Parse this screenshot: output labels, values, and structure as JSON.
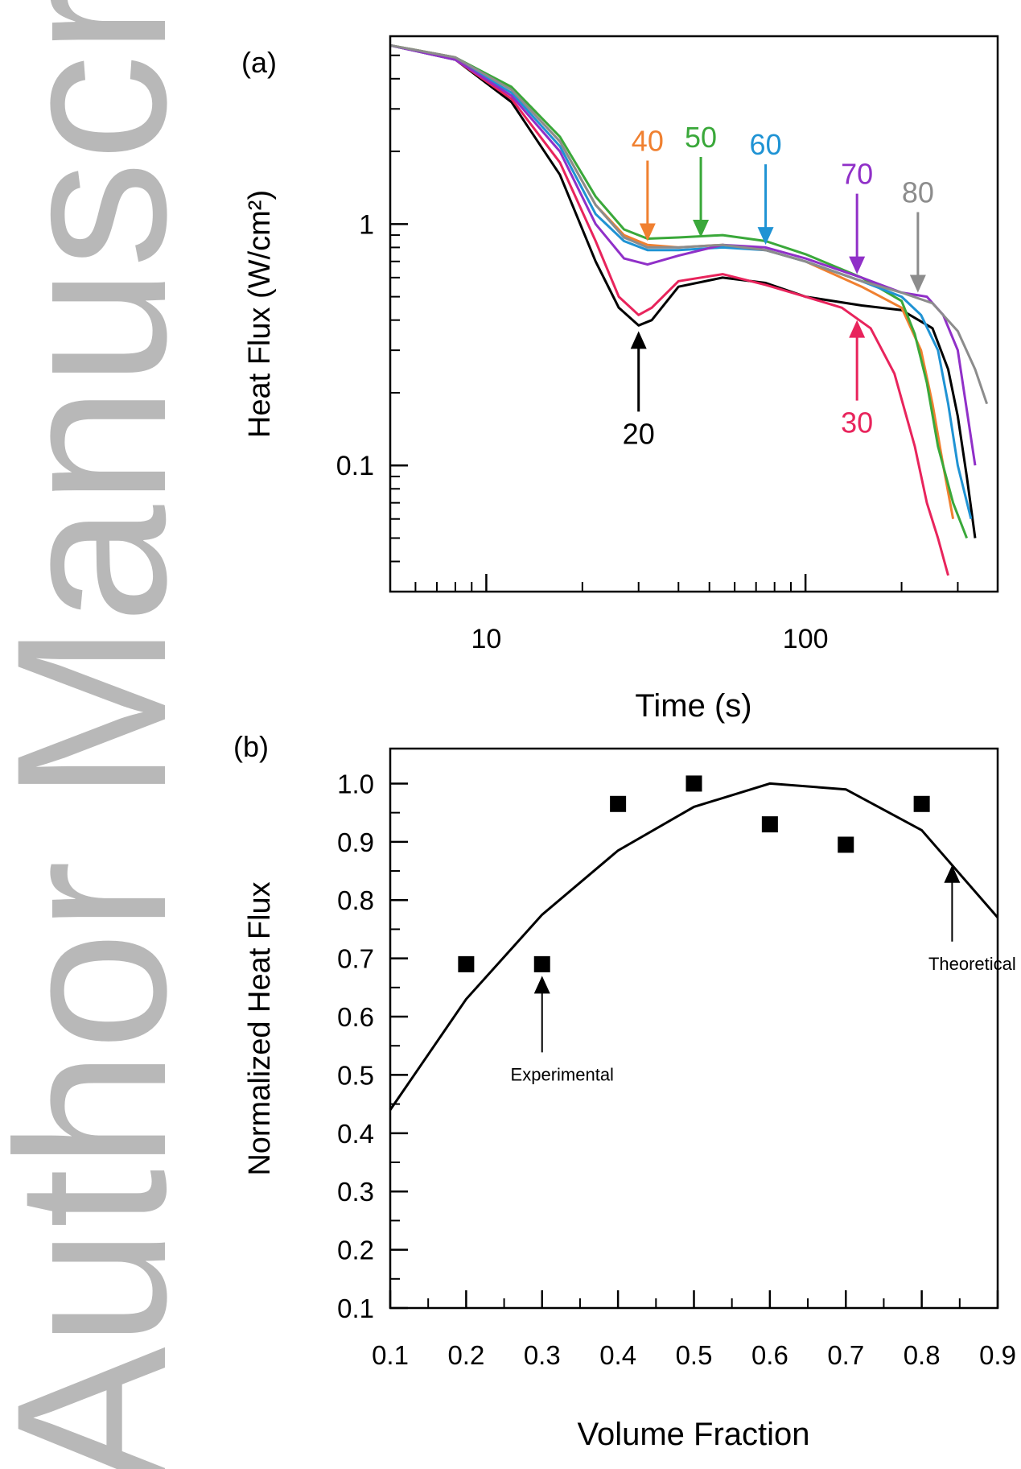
{
  "watermark": {
    "text": "Author Manuscript",
    "color": "#b8b8b8"
  },
  "chart_data": [
    {
      "panel_label": "(a)",
      "type": "line",
      "xlabel": "Time (s)",
      "ylabel": "Heat Flux (W/cm²)",
      "xscale": "log",
      "yscale": "log",
      "xlim": [
        5,
        400
      ],
      "ylim": [
        0.03,
        6
      ],
      "x_ticks": [
        10,
        100
      ],
      "x_tick_labels": [
        "10",
        "100"
      ],
      "y_ticks": [
        0.1,
        1
      ],
      "y_tick_labels": [
        "0.1",
        "1"
      ],
      "grid": false,
      "series": [
        {
          "name": "20",
          "color": "#000000",
          "x": [
            5,
            8,
            12,
            17,
            22,
            26,
            30,
            33,
            40,
            55,
            75,
            100,
            150,
            200,
            250,
            280,
            300,
            320,
            340
          ],
          "y": [
            5.5,
            4.8,
            3.2,
            1.6,
            0.7,
            0.45,
            0.38,
            0.4,
            0.55,
            0.6,
            0.57,
            0.5,
            0.46,
            0.44,
            0.37,
            0.25,
            0.16,
            0.09,
            0.05
          ]
        },
        {
          "name": "30",
          "color": "#e8245c",
          "x": [
            5,
            8,
            12,
            17,
            22,
            26,
            30,
            33,
            40,
            55,
            75,
            100,
            130,
            160,
            190,
            220,
            240,
            260,
            280
          ],
          "y": [
            5.5,
            4.8,
            3.3,
            1.8,
            0.85,
            0.5,
            0.42,
            0.45,
            0.58,
            0.62,
            0.56,
            0.5,
            0.45,
            0.37,
            0.24,
            0.12,
            0.07,
            0.05,
            0.035
          ]
        },
        {
          "name": "40",
          "color": "#f08030",
          "x": [
            5,
            8,
            12,
            17,
            22,
            27,
            32,
            40,
            55,
            75,
            100,
            150,
            200,
            230,
            250,
            270,
            290
          ],
          "y": [
            5.5,
            4.9,
            3.6,
            2.2,
            1.2,
            0.9,
            0.82,
            0.8,
            0.82,
            0.78,
            0.7,
            0.55,
            0.45,
            0.3,
            0.18,
            0.1,
            0.06
          ]
        },
        {
          "name": "50",
          "color": "#3aa83a",
          "x": [
            5,
            8,
            12,
            17,
            22,
            27,
            32,
            40,
            55,
            75,
            100,
            150,
            200,
            220,
            240,
            260,
            290,
            320
          ],
          "y": [
            5.5,
            4.9,
            3.7,
            2.3,
            1.3,
            0.95,
            0.87,
            0.88,
            0.9,
            0.85,
            0.75,
            0.6,
            0.48,
            0.35,
            0.22,
            0.12,
            0.07,
            0.05
          ]
        },
        {
          "name": "60",
          "color": "#1f93d4",
          "x": [
            5,
            8,
            12,
            17,
            22,
            27,
            32,
            40,
            55,
            75,
            100,
            150,
            200,
            230,
            260,
            280,
            300,
            330
          ],
          "y": [
            5.5,
            4.8,
            3.5,
            2.1,
            1.1,
            0.85,
            0.78,
            0.78,
            0.8,
            0.78,
            0.7,
            0.58,
            0.5,
            0.42,
            0.3,
            0.18,
            0.1,
            0.06
          ]
        },
        {
          "name": "70",
          "color": "#9030c8",
          "x": [
            5,
            8,
            12,
            17,
            22,
            27,
            32,
            40,
            55,
            75,
            100,
            150,
            200,
            240,
            270,
            300,
            320,
            340
          ],
          "y": [
            5.5,
            4.8,
            3.4,
            2.0,
            1.0,
            0.72,
            0.68,
            0.74,
            0.82,
            0.8,
            0.72,
            0.6,
            0.52,
            0.5,
            0.42,
            0.3,
            0.17,
            0.1
          ]
        },
        {
          "name": "80",
          "color": "#8c8c8c",
          "x": [
            5,
            8,
            12,
            17,
            22,
            27,
            32,
            40,
            55,
            75,
            100,
            150,
            200,
            250,
            300,
            340,
            370
          ],
          "y": [
            5.5,
            4.9,
            3.6,
            2.2,
            1.2,
            0.88,
            0.8,
            0.8,
            0.82,
            0.78,
            0.7,
            0.58,
            0.52,
            0.47,
            0.36,
            0.25,
            0.18
          ]
        }
      ],
      "annotations": [
        {
          "text": "20",
          "color": "#000000",
          "x": 30,
          "y": 0.36,
          "direction": "up"
        },
        {
          "text": "30",
          "color": "#e8245c",
          "x": 145,
          "y": 0.4,
          "direction": "up"
        },
        {
          "text": "40",
          "color": "#f08030",
          "x": 32,
          "y": 0.85,
          "direction": "down"
        },
        {
          "text": "50",
          "color": "#3aa83a",
          "x": 47,
          "y": 0.88,
          "direction": "down"
        },
        {
          "text": "60",
          "color": "#1f93d4",
          "x": 75,
          "y": 0.82,
          "direction": "down"
        },
        {
          "text": "70",
          "color": "#9030c8",
          "x": 145,
          "y": 0.62,
          "direction": "down"
        },
        {
          "text": "80",
          "color": "#8c8c8c",
          "x": 225,
          "y": 0.52,
          "direction": "down"
        }
      ]
    },
    {
      "panel_label": "(b)",
      "type": "scatter",
      "xlabel": "Volume Fraction",
      "ylabel": "Normalized Heat Flux",
      "xlim": [
        0.1,
        0.9
      ],
      "ylim": [
        0.1,
        1.06
      ],
      "x_ticks": [
        0.1,
        0.2,
        0.3,
        0.4,
        0.5,
        0.6,
        0.7,
        0.8,
        0.9
      ],
      "x_tick_labels": [
        "0.1",
        "0.2",
        "0.3",
        "0.4",
        "0.5",
        "0.6",
        "0.7",
        "0.8",
        "0.9"
      ],
      "y_ticks": [
        0.1,
        0.2,
        0.3,
        0.4,
        0.5,
        0.6,
        0.7,
        0.8,
        0.9,
        1.0
      ],
      "y_tick_labels": [
        "0.1",
        "0.2",
        "0.3",
        "0.4",
        "0.5",
        "0.6",
        "0.7",
        "0.8",
        "0.9",
        "1.0"
      ],
      "grid": false,
      "series": [
        {
          "name": "Experimental",
          "kind": "scatter",
          "color": "#000000",
          "x": [
            0.2,
            0.3,
            0.4,
            0.5,
            0.6,
            0.7,
            0.8
          ],
          "y": [
            0.69,
            0.69,
            0.965,
            1.0,
            0.93,
            0.895,
            0.965
          ]
        },
        {
          "name": "Theoretical",
          "kind": "line",
          "color": "#000000",
          "x": [
            0.1,
            0.2,
            0.3,
            0.4,
            0.5,
            0.6,
            0.7,
            0.8,
            0.9
          ],
          "y": [
            0.44,
            0.63,
            0.775,
            0.885,
            0.96,
            1.0,
            0.99,
            0.92,
            0.77
          ]
        }
      ],
      "annotations": [
        {
          "text": "Experimental",
          "x": 0.3,
          "y": 0.67,
          "direction": "up"
        },
        {
          "text": "Theoretical",
          "x": 0.84,
          "y": 0.86,
          "direction": "up"
        }
      ]
    }
  ]
}
